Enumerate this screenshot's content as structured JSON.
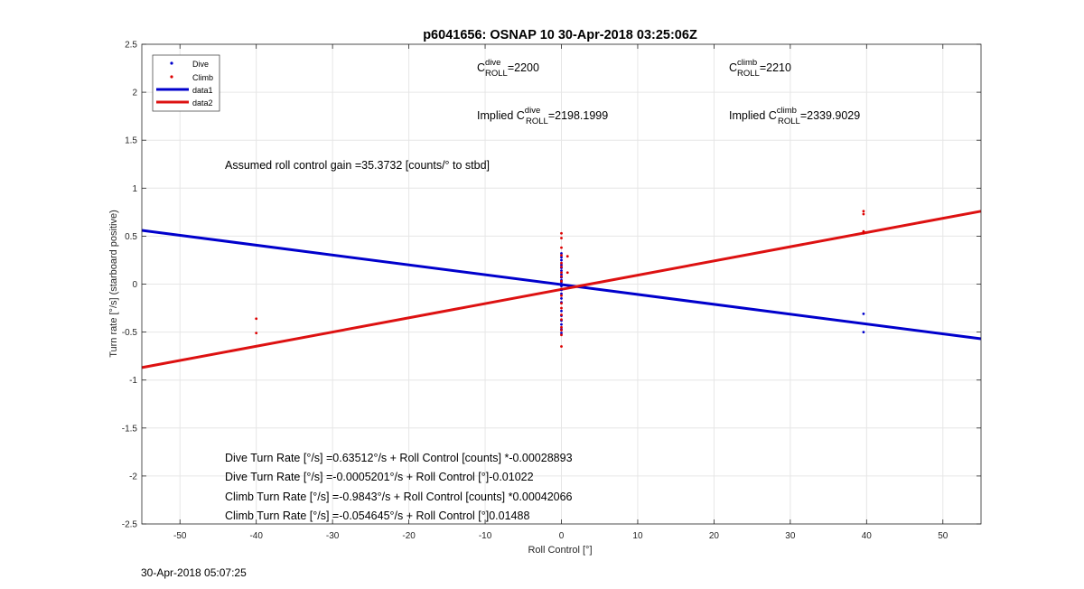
{
  "chart_data": {
    "type": "scatter",
    "title": "p6041656: OSNAP 10 30-Apr-2018 03:25:06Z",
    "xlabel": "Roll Control [°]",
    "ylabel": "Turn rate [°/s] (starboard positive)",
    "xlim": [
      -55,
      55
    ],
    "ylim": [
      -2.5,
      2.5
    ],
    "xticks": [
      -50,
      -40,
      -30,
      -20,
      -10,
      0,
      10,
      20,
      30,
      40,
      50
    ],
    "yticks": [
      -2.5,
      -2,
      -1.5,
      -1,
      -0.5,
      0,
      0.5,
      1,
      1.5,
      2,
      2.5
    ],
    "grid": true,
    "legend_position": "top-left",
    "colors": {
      "dive": "#0000cc",
      "climb": "#dd0000",
      "fit_dive": "#0000cc",
      "fit_climb": "#dd1111"
    },
    "series": [
      {
        "name": "Dive",
        "kind": "points",
        "color": "#0000cc",
        "points": [
          [
            0,
            0.32
          ],
          [
            0,
            0.28
          ],
          [
            0,
            0.25
          ],
          [
            0,
            0.2
          ],
          [
            0,
            0.17
          ],
          [
            0,
            0.14
          ],
          [
            0,
            0.1
          ],
          [
            0,
            0.07
          ],
          [
            0,
            0.04
          ],
          [
            0,
            0.02
          ],
          [
            0,
            -0.02
          ],
          [
            0,
            -0.06
          ],
          [
            0,
            -0.1
          ],
          [
            0,
            -0.15
          ],
          [
            0,
            -0.19
          ],
          [
            0,
            -0.28
          ],
          [
            0,
            -0.33
          ],
          [
            0,
            -0.38
          ],
          [
            0,
            -0.42
          ],
          [
            0,
            -0.47
          ],
          [
            0,
            -0.51
          ],
          [
            39.6,
            -0.31
          ],
          [
            39.6,
            -0.5
          ]
        ]
      },
      {
        "name": "Climb",
        "kind": "points",
        "color": "#dd0000",
        "points": [
          [
            -40,
            -0.36
          ],
          [
            -40,
            -0.51
          ],
          [
            0,
            0.53
          ],
          [
            0,
            0.48
          ],
          [
            0,
            0.38
          ],
          [
            0,
            0.3
          ],
          [
            0,
            0.22
          ],
          [
            0,
            0.18
          ],
          [
            0,
            0.12
          ],
          [
            0,
            0.08
          ],
          [
            0,
            0.03
          ],
          [
            0,
            -0.05
          ],
          [
            0,
            -0.12
          ],
          [
            0,
            -0.2
          ],
          [
            0,
            -0.25
          ],
          [
            0,
            -0.32
          ],
          [
            0,
            -0.37
          ],
          [
            0,
            -0.45
          ],
          [
            0,
            -0.48
          ],
          [
            0,
            -0.53
          ],
          [
            0,
            -0.65
          ],
          [
            0.8,
            0.29
          ],
          [
            0.8,
            0.12
          ],
          [
            39.6,
            0.76
          ],
          [
            39.6,
            0.73
          ],
          [
            39.6,
            0.55
          ],
          [
            39.6,
            0.53
          ]
        ]
      },
      {
        "name": "data1",
        "kind": "line",
        "color": "#0000cc",
        "from": [
          -55,
          0.56
        ],
        "to": [
          55,
          -0.57
        ]
      },
      {
        "name": "data2",
        "kind": "line",
        "color": "#dd1111",
        "from": [
          -55,
          -0.87
        ],
        "to": [
          55,
          0.76
        ]
      }
    ],
    "annotations": {
      "c_roll_dive": {
        "label": "C",
        "sup": "dive",
        "sub": "ROLL",
        "value": "=2200"
      },
      "c_roll_climb": {
        "label": "C",
        "sup": "climb",
        "sub": "ROLL",
        "value": "=2210"
      },
      "implied_dive": {
        "label": "Implied C",
        "sup": "dive",
        "sub": "ROLL",
        "value": "=2198.1999"
      },
      "implied_climb": {
        "label": "Implied C",
        "sup": "climb",
        "sub": "ROLL",
        "value": "=2339.9029"
      },
      "gain": "Assumed roll control gain =35.3732 [counts/° to stbd]",
      "fits": [
        "Dive Turn Rate [°/s] =0.63512°/s + Roll Control [counts] *-0.00028893",
        "Dive Turn Rate [°/s] =-0.0005201°/s + Roll Control [°]-0.01022",
        "Climb Turn Rate [°/s] =-0.9843°/s + Roll Control [counts] *0.00042066",
        "Climb Turn Rate [°/s] =-0.054645°/s + Roll Control [°]0.01488"
      ]
    }
  },
  "footer": {
    "timestamp": "30-Apr-2018 05:07:25"
  }
}
